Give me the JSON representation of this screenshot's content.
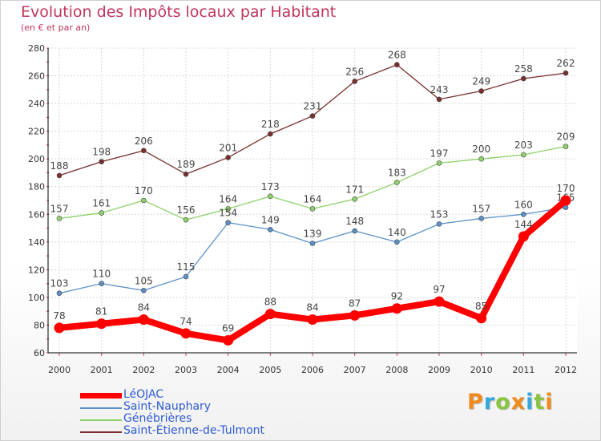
{
  "chart_data": {
    "type": "line",
    "title": "Evolution des Impôts locaux par Habitant",
    "subtitle": "(en € et par an)",
    "xlabel": "",
    "ylabel": "",
    "ylim": [
      60,
      280
    ],
    "yticks": [
      60,
      80,
      100,
      120,
      140,
      160,
      180,
      200,
      220,
      240,
      260,
      280
    ],
    "grid": true,
    "legend_position": "bottom-left",
    "x": [
      "2000",
      "2001",
      "2002",
      "2003",
      "2004",
      "2005",
      "2006",
      "2007",
      "2008",
      "2009",
      "2010",
      "2011",
      "2012"
    ],
    "series": [
      {
        "name": "Saint-Étienne-de-Tulmont",
        "color": "#7a2e2e",
        "style": "thin",
        "values": [
          188,
          198,
          206,
          189,
          201,
          218,
          231,
          256,
          268,
          243,
          249,
          258,
          262
        ]
      },
      {
        "name": "Génébrières",
        "color": "#8fd16b",
        "style": "thin",
        "values": [
          157,
          161,
          170,
          156,
          164,
          173,
          164,
          171,
          183,
          197,
          200,
          203,
          209
        ]
      },
      {
        "name": "Saint-Nauphary",
        "color": "#5b91c9",
        "style": "thin",
        "values": [
          103,
          110,
          105,
          115,
          154,
          149,
          139,
          148,
          140,
          153,
          157,
          160,
          165
        ]
      },
      {
        "name": "LéOJAC",
        "color": "#ff0000",
        "style": "thick",
        "values": [
          78,
          81,
          84,
          74,
          69,
          88,
          84,
          87,
          92,
          97,
          85,
          144,
          170
        ]
      }
    ],
    "legend_order": [
      "LéOJAC",
      "Saint-Nauphary",
      "Génébrières",
      "Saint-Étienne-de-Tulmont"
    ]
  },
  "logo": {
    "letters": [
      "P",
      "r",
      "o",
      "x",
      "i",
      "t",
      "i"
    ],
    "colors": [
      "#f08a1c",
      "#35a8dd",
      "#8bc53f",
      "#f08a1c",
      "#35a8dd",
      "#8bc53f",
      "#f08a1c"
    ]
  }
}
